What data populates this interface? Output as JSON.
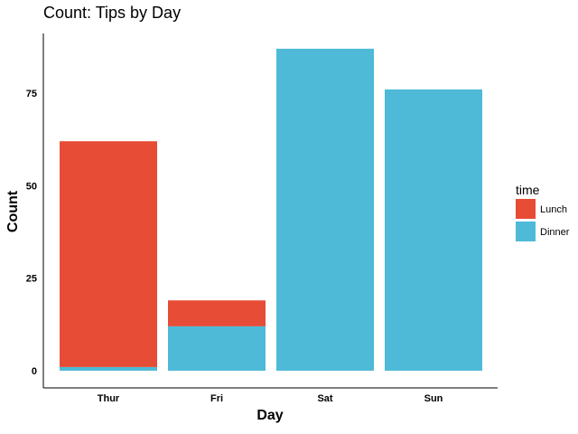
{
  "chart_data": {
    "type": "bar",
    "stacked": true,
    "title": "Count: Tips by Day",
    "xlabel": "Day",
    "ylabel": "Count",
    "categories": [
      "Thur",
      "Fri",
      "Sat",
      "Sun"
    ],
    "series": [
      {
        "name": "Dinner",
        "values": [
          1,
          12,
          87,
          76
        ],
        "color": "#4EBAD7"
      },
      {
        "name": "Lunch",
        "values": [
          61,
          7,
          0,
          0
        ],
        "color": "#E64C36"
      }
    ],
    "yticks": [
      0,
      25,
      50,
      75
    ],
    "ylim": [
      -4,
      91
    ],
    "legend": {
      "title": "time",
      "position": "right",
      "entries": [
        "Lunch",
        "Dinner"
      ]
    },
    "grid": false
  }
}
